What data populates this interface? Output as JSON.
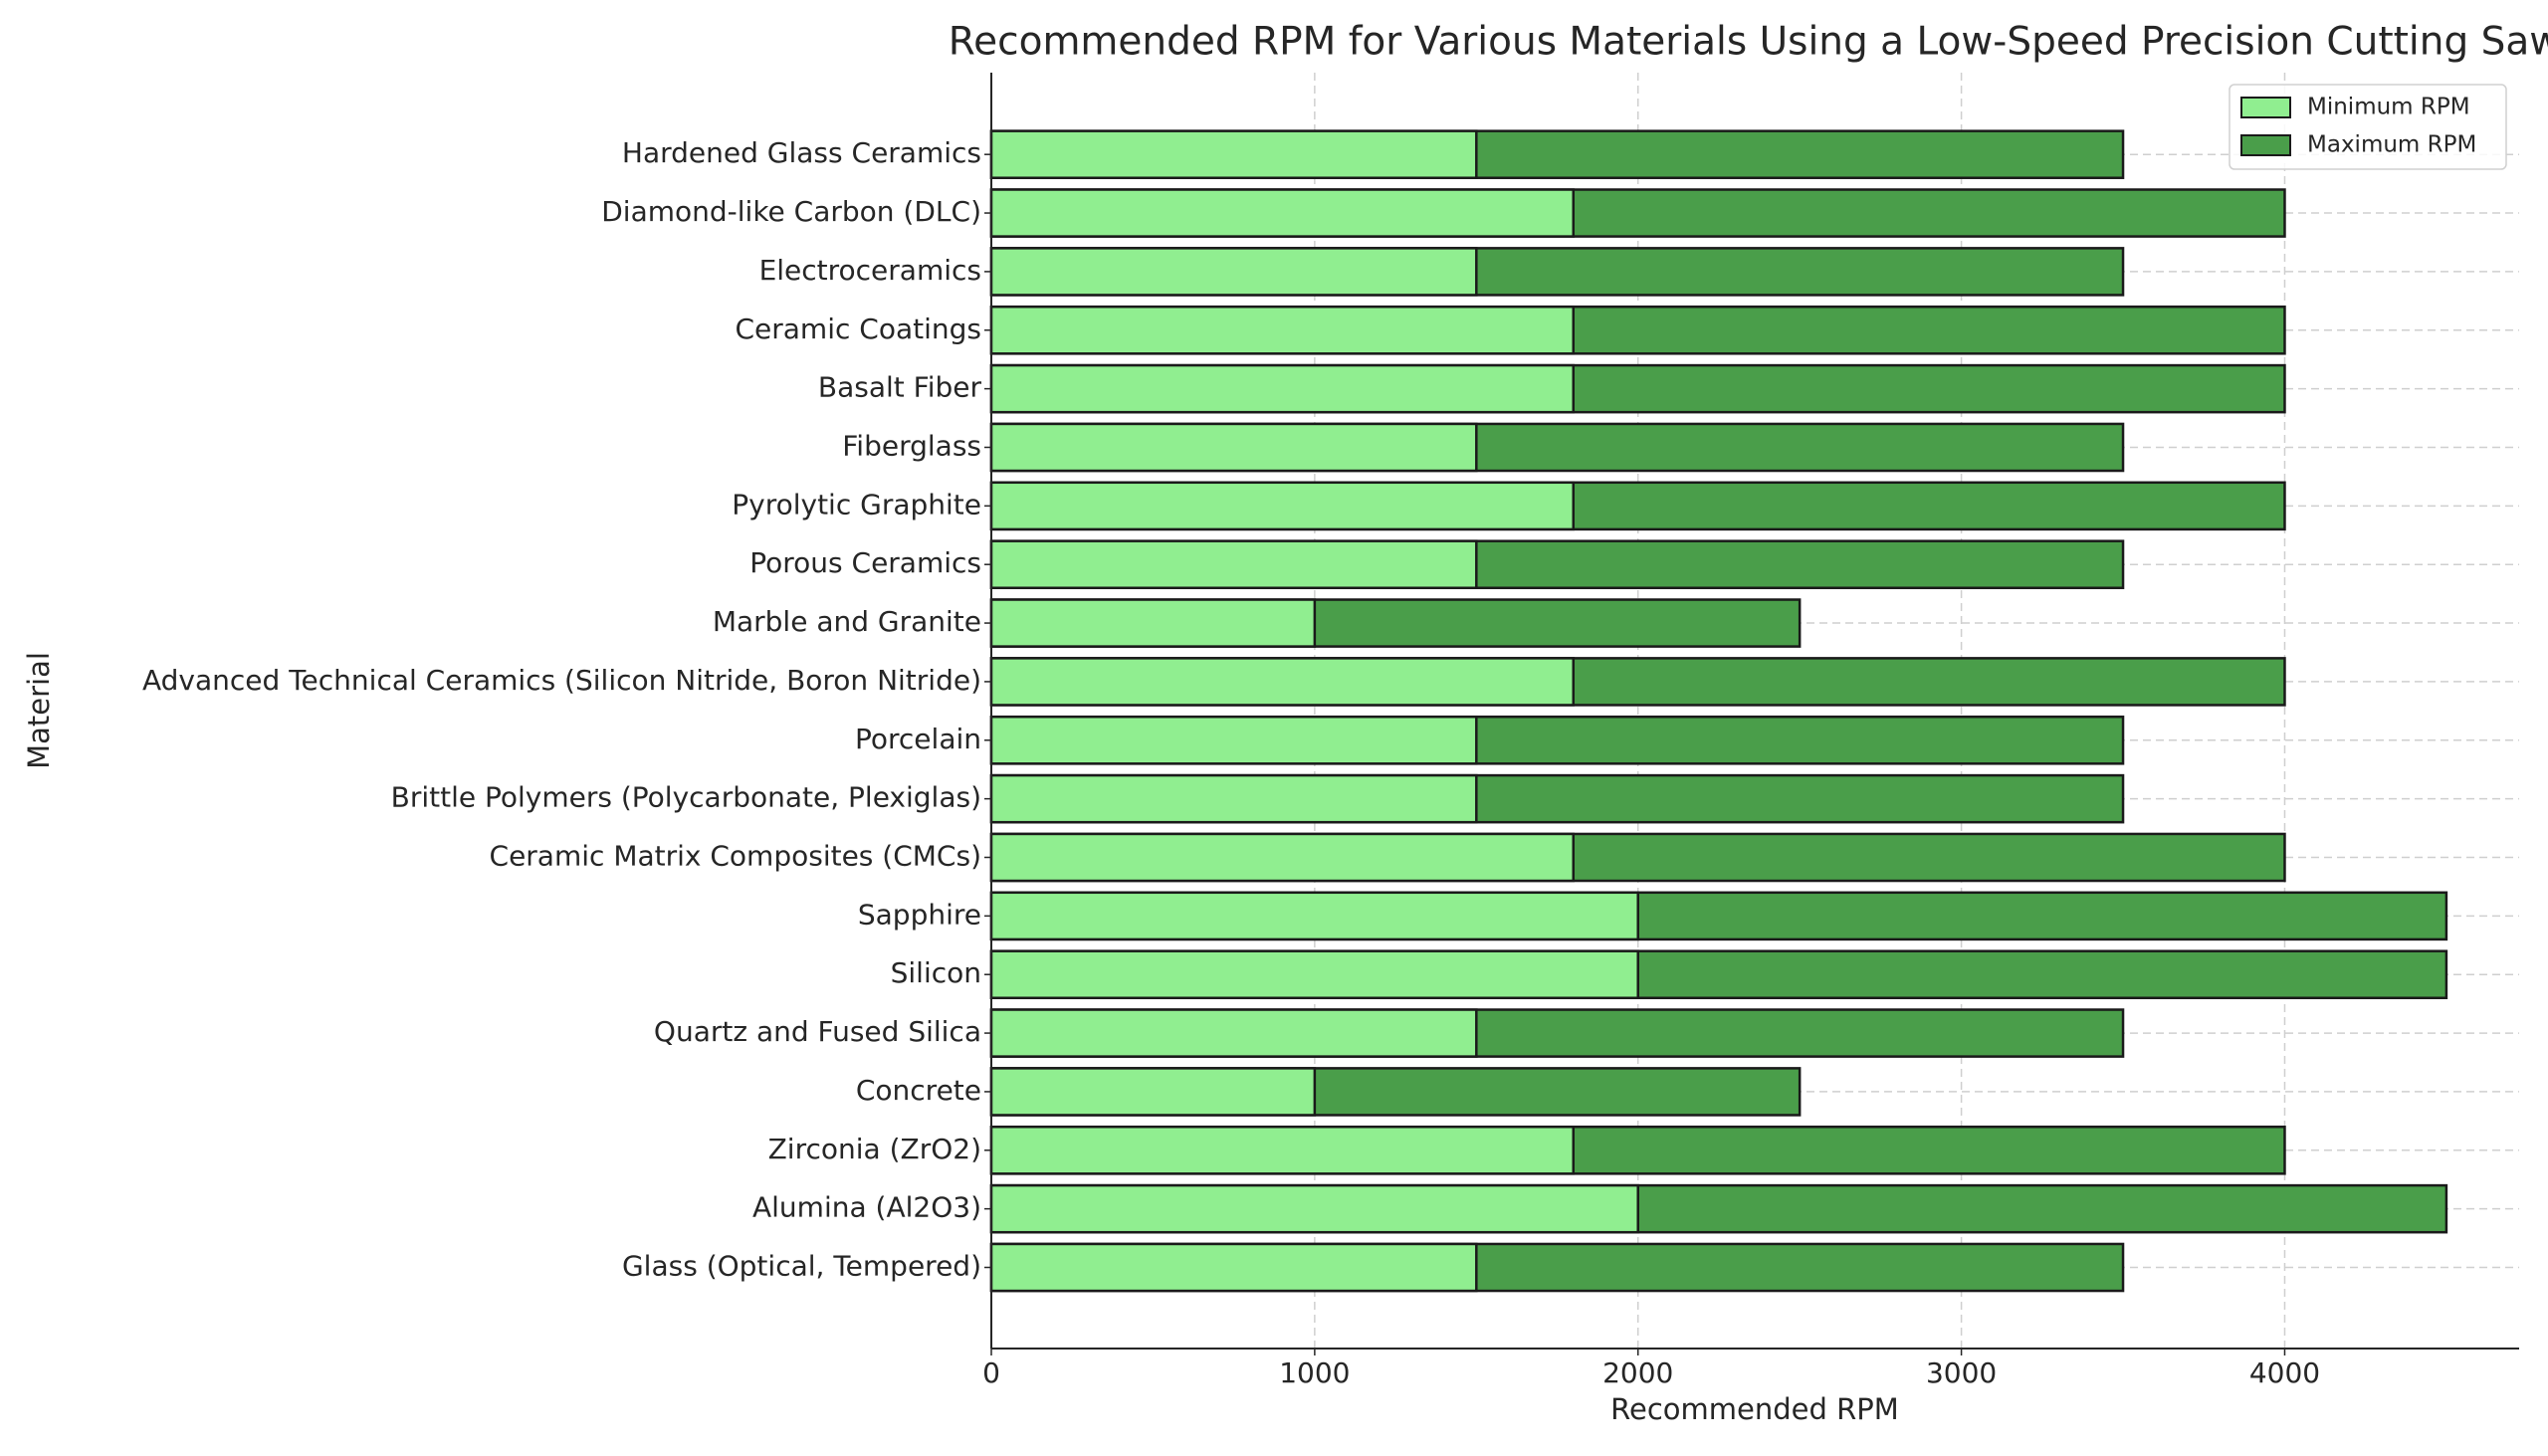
{
  "chart_data": {
    "type": "barh",
    "title": "Recommended RPM for Various Materials Using a Low-Speed Precision Cutting Saw",
    "x_label": "Recommended RPM",
    "y_label": "Material",
    "categories": [
      "Glass (Optical, Tempered)",
      "Alumina (Al2O3)",
      "Zirconia (ZrO2)",
      "Concrete",
      "Quartz and Fused Silica",
      "Silicon",
      "Sapphire",
      "Ceramic Matrix Composites (CMCs)",
      "Brittle Polymers (Polycarbonate, Plexiglas)",
      "Porcelain",
      "Advanced Technical Ceramics (Silicon Nitride, Boron Nitride)",
      "Marble and Granite",
      "Porous Ceramics",
      "Pyrolytic Graphite",
      "Fiberglass",
      "Basalt Fiber",
      "Ceramic Coatings",
      "Electroceramics",
      "Diamond-like Carbon (DLC)",
      "Hardened Glass Ceramics"
    ],
    "series": [
      {
        "name": "Minimum RPM",
        "color": "#90ee90",
        "values": [
          1500,
          2000,
          1800,
          1000,
          1500,
          2000,
          2000,
          1800,
          1500,
          1500,
          1800,
          1000,
          1500,
          1800,
          1500,
          1800,
          1800,
          1500,
          1800,
          1500
        ]
      },
      {
        "name": "Maximum RPM",
        "color": "#4a9e4a",
        "values": [
          3500,
          4500,
          4000,
          2500,
          3500,
          4500,
          4500,
          4000,
          3500,
          3500,
          4000,
          2500,
          3500,
          4000,
          3500,
          4000,
          4000,
          3500,
          4000,
          3500
        ]
      }
    ],
    "xlim": [
      0,
      4725
    ],
    "xticks": [
      0,
      1000,
      2000,
      3000,
      4000
    ],
    "grid": true,
    "legend": "upper right"
  }
}
